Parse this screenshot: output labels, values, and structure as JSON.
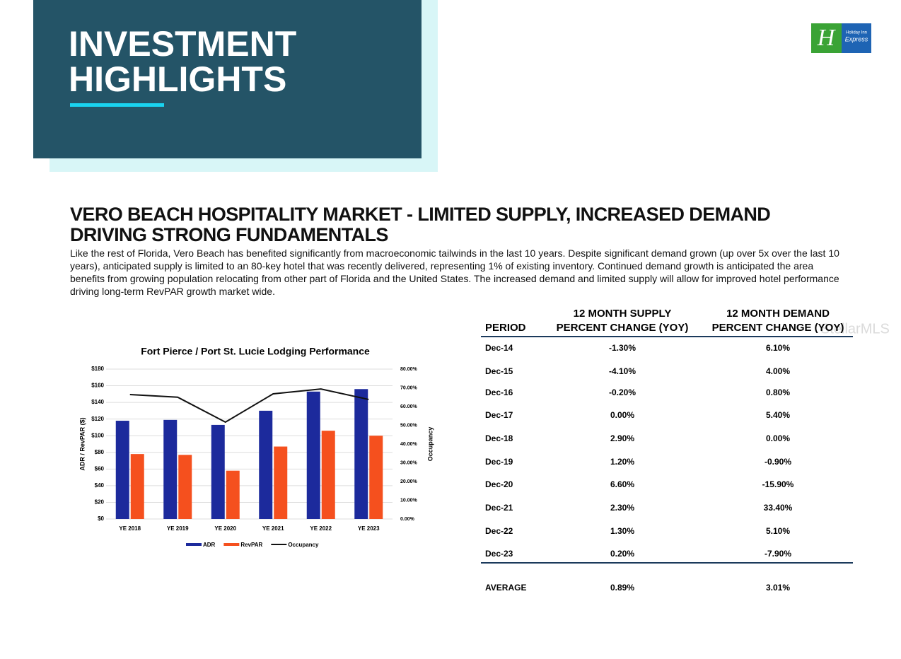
{
  "header": {
    "title_lines": [
      "INVESTMENT",
      "HIGHLIGHTS"
    ]
  },
  "logo": {
    "mark": "H",
    "line1": "Holiday Inn",
    "line2": "Express"
  },
  "watermark": "StellarMLS",
  "section": {
    "title": "VERO BEACH HOSPITALITY MARKET - LIMITED SUPPLY, INCREASED DEMAND DRIVING STRONG FUNDAMENTALS",
    "body": "Like the rest of Florida, Vero Beach has benefited significantly from macroeconomic tailwinds in the last 10 years.  Despite significant demand grown (up over 5x over the last 10 years), anticipated supply is limited to an 80-key hotel that was recently delivered, representing 1% of existing inventory.  Continued demand growth is anticipated the area benefits from growing population relocating from other part of Florida and the United States.   The increased demand and limited supply will allow for improved hotel performance driving long-term RevPAR growth market wide."
  },
  "chart_data": {
    "type": "bar",
    "title": "Fort Pierce / Port St. Lucie Lodging Performance",
    "ylabel": "ADR / RevPAR ($)",
    "y2label": "Occupancy",
    "categories": [
      "YE 2018",
      "YE 2019",
      "YE 2020",
      "YE 2021",
      "YE 2022",
      "YE 2023"
    ],
    "series": [
      {
        "name": "ADR",
        "color": "#1c2a9c",
        "values": [
          118,
          119,
          113,
          130,
          153,
          156
        ]
      },
      {
        "name": "RevPAR",
        "color": "#f5501e",
        "values": [
          78,
          77,
          58,
          87,
          106,
          100
        ]
      },
      {
        "name": "Occupancy",
        "type": "line",
        "axis": "y2",
        "color": "#111111",
        "values": [
          66.4,
          65,
          51.7,
          66.8,
          69.4,
          63.8
        ]
      }
    ],
    "ylim": [
      0,
      180
    ],
    "yticks": [
      {
        "value": 0,
        "label": "$0"
      },
      {
        "value": 20,
        "label": "$20"
      },
      {
        "value": 40,
        "label": "$40"
      },
      {
        "value": 60,
        "label": "$60"
      },
      {
        "value": 80,
        "label": "$80"
      },
      {
        "value": 100,
        "label": "$100"
      },
      {
        "value": 120,
        "label": "$120"
      },
      {
        "value": 140,
        "label": "$140"
      },
      {
        "value": 160,
        "label": "$160"
      },
      {
        "value": 180,
        "label": "$180"
      }
    ],
    "y2lim": [
      0,
      80
    ],
    "y2ticks": [
      {
        "value": 0,
        "label": "0.00%"
      },
      {
        "value": 10,
        "label": "10.00%"
      },
      {
        "value": 20,
        "label": "20.00%"
      },
      {
        "value": 30,
        "label": "30.00%"
      },
      {
        "value": 40,
        "label": "40.00%"
      },
      {
        "value": 50,
        "label": "50.00%"
      },
      {
        "value": 60,
        "label": "60.00%"
      },
      {
        "value": 70,
        "label": "70.00%"
      },
      {
        "value": 80,
        "label": "80.00%"
      }
    ],
    "grid": true,
    "legend": "bottom"
  },
  "table": {
    "header": [
      [
        "PERIOD"
      ],
      [
        "12 MONTH SUPPLY",
        "PERCENT CHANGE (YOY)"
      ],
      [
        "12 MONTH DEMAND",
        "PERCENT CHANGE (YOY)"
      ]
    ],
    "rows": [
      [
        "Dec-14",
        "-1.30%",
        "6.10%"
      ],
      [
        "Dec-15",
        "-4.10%",
        "4.00%"
      ],
      [
        "Dec-16",
        "-0.20%",
        "0.80%"
      ],
      [
        "Dec-17",
        "0.00%",
        "5.40%"
      ],
      [
        "Dec-18",
        "2.90%",
        "0.00%"
      ],
      [
        "Dec-19",
        "1.20%",
        "-0.90%"
      ],
      [
        "Dec-20",
        "6.60%",
        "-15.90%"
      ],
      [
        "Dec-21",
        "2.30%",
        "33.40%"
      ],
      [
        "Dec-22",
        "1.30%",
        "5.10%"
      ],
      [
        "Dec-23",
        "0.20%",
        "-7.90%"
      ]
    ],
    "average": [
      "AVERAGE",
      "0.89%",
      "3.01%"
    ]
  }
}
